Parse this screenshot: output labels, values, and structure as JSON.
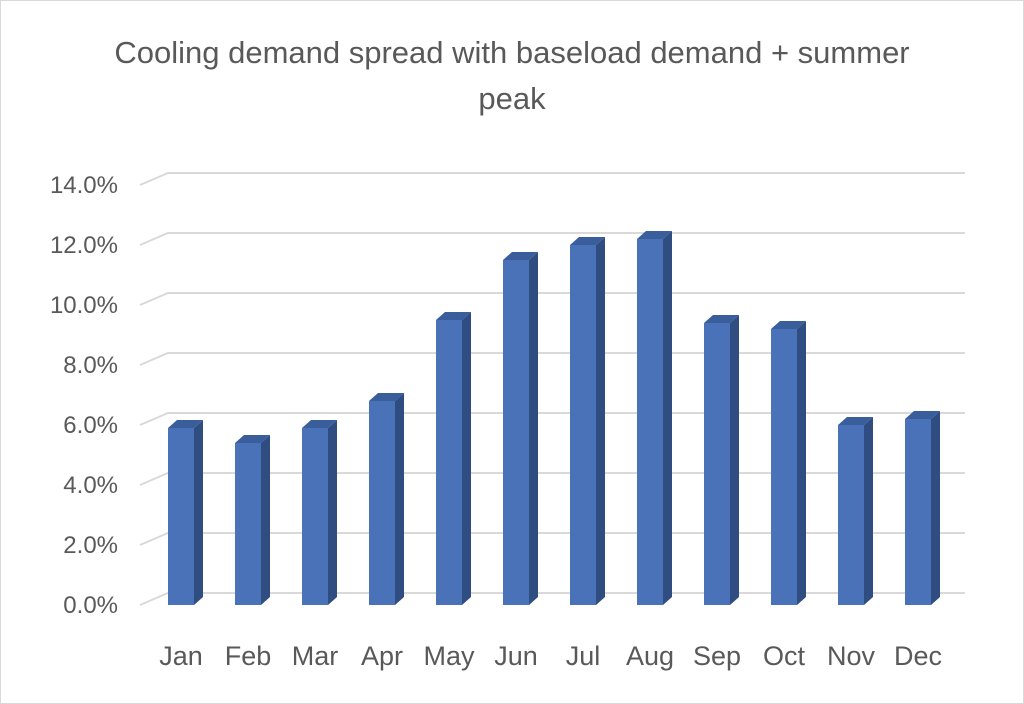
{
  "chart_data": {
    "type": "bar",
    "title": "Cooling demand spread with baseload demand + summer peak",
    "xlabel": "",
    "ylabel": "",
    "categories": [
      "Jan",
      "Feb",
      "Mar",
      "Apr",
      "May",
      "Jun",
      "Jul",
      "Aug",
      "Sep",
      "Oct",
      "Nov",
      "Dec"
    ],
    "values": [
      5.9,
      5.4,
      5.9,
      6.8,
      9.5,
      11.5,
      12.0,
      12.2,
      9.4,
      9.2,
      6.0,
      6.2
    ],
    "ylim": [
      0,
      14
    ],
    "yticks": [
      0,
      2,
      4,
      6,
      8,
      10,
      12,
      14
    ],
    "ytick_labels": [
      "0.0%",
      "2.0%",
      "4.0%",
      "6.0%",
      "8.0%",
      "10.0%",
      "12.0%",
      "14.0%"
    ],
    "grid": true,
    "legend": "none",
    "style": "3d-column",
    "colors": {
      "bar_front": "#4a72b8",
      "bar_side": "#2f4d80",
      "bar_top": "#3a5e9c",
      "grid": "#d9d9d9",
      "text": "#595959"
    }
  }
}
